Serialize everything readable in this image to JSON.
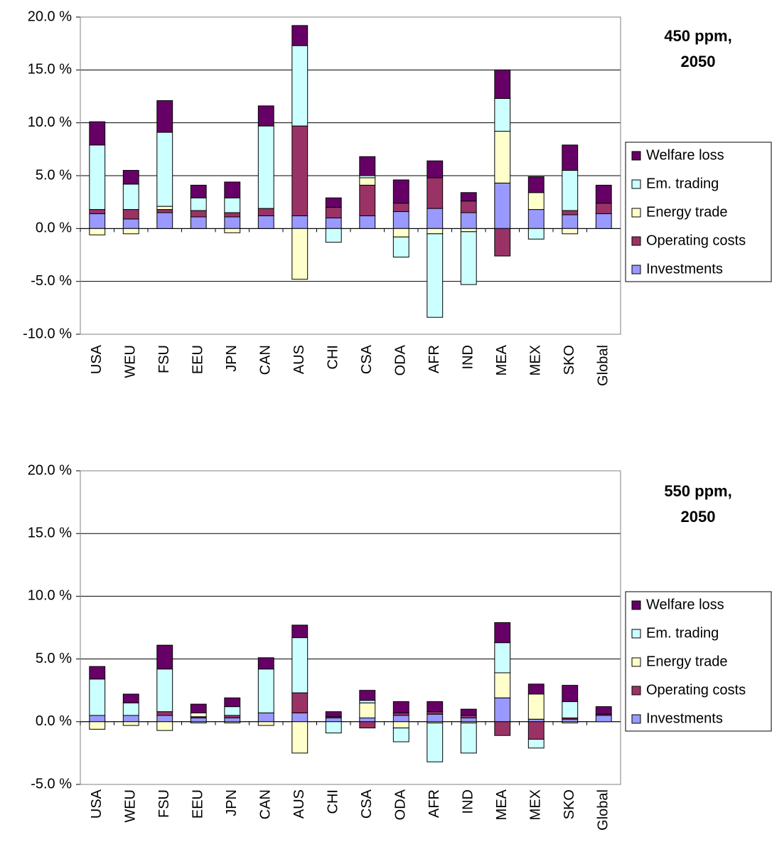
{
  "chart_data": [
    {
      "type": "bar",
      "stacked": true,
      "annotation": [
        "450 ppm,",
        "2050"
      ],
      "categories": [
        "USA",
        "WEU",
        "FSU",
        "EEU",
        "JPN",
        "CAN",
        "AUS",
        "CHI",
        "CSA",
        "ODA",
        "AFR",
        "IND",
        "MEA",
        "MEX",
        "SKO",
        "Global"
      ],
      "series": [
        {
          "name": "Investments",
          "color": "#9999ff",
          "values": [
            1.4,
            0.9,
            1.5,
            1.1,
            1.1,
            1.2,
            1.2,
            1.0,
            1.2,
            1.6,
            1.9,
            1.5,
            4.3,
            1.8,
            1.3,
            1.4
          ]
        },
        {
          "name": "Operating costs",
          "color": "#993366",
          "values": [
            0.4,
            0.9,
            0.3,
            0.6,
            0.4,
            0.7,
            8.5,
            1.0,
            2.9,
            0.8,
            2.9,
            1.1,
            -2.6,
            0,
            0.4,
            1.0
          ]
        },
        {
          "name": "Energy trade",
          "color": "#ffffcc",
          "values": [
            -0.6,
            -0.5,
            0.3,
            0,
            -0.4,
            0,
            -4.8,
            0,
            0.7,
            -0.8,
            -0.5,
            -0.3,
            4.9,
            1.6,
            -0.5,
            0
          ]
        },
        {
          "name": "Em. trading",
          "color": "#ccffff",
          "values": [
            6.1,
            2.4,
            7.0,
            1.2,
            1.4,
            7.8,
            7.6,
            -1.3,
            0.2,
            -1.9,
            -7.9,
            -5.0,
            3.1,
            -1.0,
            3.8,
            0
          ]
        },
        {
          "name": "Welfare loss",
          "color": "#660066",
          "values": [
            2.2,
            1.3,
            3.0,
            1.2,
            1.5,
            1.9,
            1.9,
            0.9,
            1.8,
            2.2,
            1.6,
            0.8,
            2.7,
            1.5,
            2.4,
            1.7
          ]
        }
      ],
      "ylim": [
        -10,
        20
      ],
      "yticks": [
        {
          "value": -10,
          "label": "-10.0 %"
        },
        {
          "value": -5,
          "label": "-5.0 %"
        },
        {
          "value": 0,
          "label": "0.0 %"
        },
        {
          "value": 5,
          "label": "5.0 %"
        },
        {
          "value": 10,
          "label": "10.0 %"
        },
        {
          "value": 15,
          "label": "15.0 %"
        },
        {
          "value": 20,
          "label": "20.0 %"
        }
      ],
      "grid": true,
      "legend": "right"
    },
    {
      "type": "bar",
      "stacked": true,
      "annotation": [
        "550 ppm,",
        "2050"
      ],
      "categories": [
        "USA",
        "WEU",
        "FSU",
        "EEU",
        "JPN",
        "CAN",
        "AUS",
        "CHI",
        "CSA",
        "ODA",
        "AFR",
        "IND",
        "MEA",
        "MEX",
        "SKO",
        "Global"
      ],
      "series": [
        {
          "name": "Investments",
          "color": "#9999ff",
          "values": [
            0.5,
            0.5,
            0.5,
            0.3,
            0.3,
            0.7,
            0.7,
            0.3,
            0.3,
            0.5,
            0.6,
            0.3,
            1.9,
            0.2,
            0.2,
            0.5
          ]
        },
        {
          "name": "Operating costs",
          "color": "#993366",
          "values": [
            0,
            0,
            0.3,
            0.1,
            0.2,
            0,
            1.6,
            0.1,
            -0.5,
            0.2,
            0.2,
            0.2,
            -1.1,
            -1.4,
            0.1,
            0.1
          ]
        },
        {
          "name": "Energy trade",
          "color": "#ffffcc",
          "values": [
            -0.6,
            -0.3,
            -0.7,
            0.3,
            -0.1,
            -0.3,
            -2.5,
            0,
            1.2,
            -0.5,
            -0.1,
            -0.1,
            2.0,
            2.0,
            -0.1,
            0
          ]
        },
        {
          "name": "Em. trading",
          "color": "#ccffff",
          "values": [
            2.9,
            1.0,
            3.4,
            -0.1,
            0.7,
            3.5,
            4.4,
            -0.9,
            0.2,
            -1.1,
            -3.1,
            -2.4,
            2.4,
            -0.7,
            1.3,
            0
          ]
        },
        {
          "name": "Welfare loss",
          "color": "#660066",
          "values": [
            1.0,
            0.7,
            1.9,
            0.7,
            0.7,
            0.9,
            1.0,
            0.4,
            0.8,
            0.9,
            0.8,
            0.5,
            1.6,
            0.8,
            1.3,
            0.6
          ]
        }
      ],
      "ylim": [
        -5,
        20
      ],
      "yticks": [
        {
          "value": -5,
          "label": "-5.0 %"
        },
        {
          "value": 0,
          "label": "0.0 %"
        },
        {
          "value": 5,
          "label": "5.0 %"
        },
        {
          "value": 10,
          "label": "10.0 %"
        },
        {
          "value": 15,
          "label": "15.0 %"
        },
        {
          "value": 20,
          "label": "20.0 %"
        }
      ],
      "grid": true,
      "legend": "right"
    }
  ]
}
